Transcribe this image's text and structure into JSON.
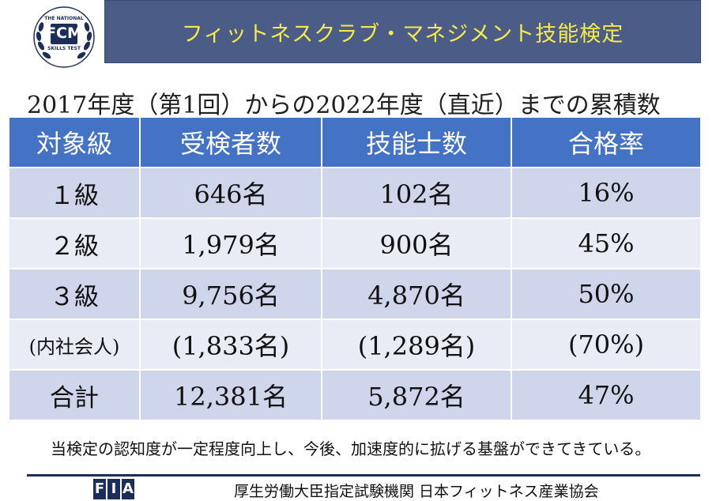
{
  "logo": {
    "top_text": "THE NATIONAL",
    "main_text": "FCM",
    "bottom_text": "SKILLS TEST"
  },
  "banner": {
    "title": "フィットネスクラブ・マネジメント技能検定"
  },
  "subtitle": "2017年度（第1回）からの2022年度（直近）までの累積数",
  "table": {
    "headers": [
      "対象級",
      "受検者数",
      "技能士数",
      "合格率"
    ],
    "rows": [
      [
        "１級",
        "646名",
        "102名",
        "16%"
      ],
      [
        "２級",
        "1,979名",
        "900名",
        "45%"
      ],
      [
        "３級",
        "9,756名",
        "4,870名",
        "50%"
      ],
      [
        "(内社会人)",
        "(1,833名)",
        "(1,289名)",
        "(70%)"
      ],
      [
        "合計",
        "12,381名",
        "5,872名",
        "47%"
      ]
    ]
  },
  "footnote": "当検定の認知度が一定程度向上し、今後、加速度的に拡げる基盤ができてきている。",
  "footer": {
    "mark": [
      "F",
      "I",
      "A"
    ],
    "organization": "厚生労働大臣指定試験機関 日本フィットネス産業協会"
  }
}
